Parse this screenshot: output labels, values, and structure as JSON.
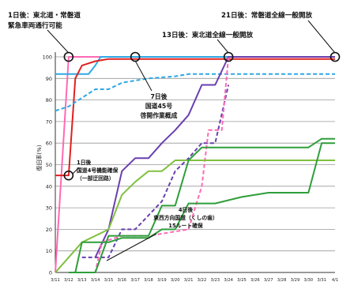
{
  "chart_data": {
    "type": "line",
    "ylabel": "復旧率(%)",
    "ylim": [
      0,
      100
    ],
    "y_ticks": [
      0,
      10,
      20,
      30,
      40,
      50,
      60,
      70,
      80,
      90,
      100
    ],
    "x_tick_labels": [
      "3/11",
      "3/12",
      "3/13",
      "3/14",
      "3/15",
      "3/16",
      "3/17",
      "3/18",
      "3/19",
      "3/20",
      "3/21",
      "3/22",
      "3/23",
      "3/24",
      "3/25",
      "3/26",
      "3/27",
      "3/28",
      "3/29",
      "3/30",
      "3/31",
      "4/1"
    ],
    "grid": "horizontal",
    "series": [
      {
        "color": "#ff69b4",
        "dash": "solid",
        "points": [
          [
            0,
            0
          ],
          [
            1,
            100
          ],
          [
            21,
            100
          ]
        ]
      },
      {
        "color": "#2ea8e6",
        "dash": "solid",
        "points": [
          [
            0,
            92
          ],
          [
            2.5,
            92
          ],
          [
            3,
            96
          ],
          [
            3.4,
            100
          ],
          [
            21,
            100
          ]
        ]
      },
      {
        "color": "#e02020",
        "dash": "solid",
        "points": [
          [
            0,
            45
          ],
          [
            1,
            45
          ],
          [
            1.5,
            90
          ],
          [
            2,
            96
          ],
          [
            3,
            98
          ],
          [
            4,
            99
          ],
          [
            21,
            99
          ]
        ]
      },
      {
        "color": "#2ea8e6",
        "dash": "dashed",
        "points": [
          [
            0,
            75
          ],
          [
            1,
            77
          ],
          [
            2,
            81
          ],
          [
            3,
            85
          ],
          [
            4,
            85
          ],
          [
            5,
            88
          ],
          [
            6,
            89
          ],
          [
            7,
            90
          ],
          [
            9,
            91
          ],
          [
            10,
            92
          ],
          [
            21,
            92
          ]
        ]
      },
      {
        "color": "#6a3fb0",
        "dash": "solid",
        "points": [
          [
            3,
            7
          ],
          [
            4,
            20
          ],
          [
            5,
            47
          ],
          [
            6,
            53
          ],
          [
            7,
            53
          ],
          [
            8,
            60
          ],
          [
            9,
            66
          ],
          [
            10,
            73
          ],
          [
            11,
            87
          ],
          [
            12,
            87
          ],
          [
            13,
            100
          ],
          [
            21,
            100
          ]
        ]
      },
      {
        "color": "#6a3fb0",
        "dash": "dashed",
        "points": [
          [
            2,
            7
          ],
          [
            4,
            7
          ],
          [
            5,
            20
          ],
          [
            6,
            20
          ],
          [
            8,
            33
          ],
          [
            9,
            47
          ],
          [
            10,
            53
          ],
          [
            11,
            60
          ],
          [
            12,
            60
          ],
          [
            13,
            87
          ]
        ]
      },
      {
        "color": "#ff69b4",
        "dash": "dashed",
        "points": [
          [
            2,
            0
          ],
          [
            3,
            0
          ],
          [
            3.5,
            14
          ],
          [
            5,
            17
          ],
          [
            7,
            17
          ],
          [
            8,
            18
          ],
          [
            10,
            20
          ],
          [
            11,
            40
          ],
          [
            11.5,
            66
          ],
          [
            12.5,
            66
          ],
          [
            13,
            100
          ]
        ]
      },
      {
        "color": "#80c040",
        "dash": "solid",
        "points": [
          [
            0,
            0
          ],
          [
            1,
            7
          ],
          [
            2,
            14
          ],
          [
            4,
            20
          ],
          [
            5,
            36
          ],
          [
            6,
            42
          ],
          [
            7,
            47
          ],
          [
            8,
            47
          ],
          [
            9,
            52
          ],
          [
            11,
            52
          ],
          [
            12,
            52
          ],
          [
            21,
            52
          ]
        ]
      },
      {
        "color": "#2e9e3a",
        "dash": "solid",
        "points": [
          [
            1,
            0
          ],
          [
            2,
            0
          ],
          [
            3,
            0
          ],
          [
            4,
            17
          ],
          [
            5,
            17
          ],
          [
            6,
            17
          ],
          [
            7,
            17
          ],
          [
            8,
            31
          ],
          [
            9,
            31
          ],
          [
            10,
            52
          ],
          [
            11,
            58
          ],
          [
            13,
            58
          ],
          [
            19,
            58
          ],
          [
            20,
            62
          ],
          [
            21,
            62
          ]
        ]
      },
      {
        "color": "#2e9e3a",
        "dash": "solid",
        "points": [
          [
            1.5,
            0
          ],
          [
            2,
            14
          ],
          [
            4,
            14
          ],
          [
            5,
            16
          ],
          [
            7,
            16
          ],
          [
            8,
            20
          ],
          [
            9,
            20
          ],
          [
            10,
            32
          ],
          [
            12,
            32
          ],
          [
            14,
            35
          ],
          [
            16,
            37
          ],
          [
            19,
            37
          ],
          [
            20,
            60
          ],
          [
            21,
            60
          ]
        ]
      }
    ],
    "markers": [
      {
        "x": 1,
        "y": 100
      },
      {
        "x": 1,
        "y": 45
      },
      {
        "x": 6,
        "y": 100
      },
      {
        "x": 13,
        "y": 100
      },
      {
        "x": 21,
        "y": 100
      }
    ],
    "annotations": [
      {
        "text": "1日後：東北道・常磐道\n緊急車両通行可能"
      },
      {
        "text": "21日後：常磐道全線一般開放"
      },
      {
        "text": "13日後：東北道全線一般開放"
      },
      {
        "text": "7日後\n国道45号\n啓開作業概成"
      },
      {
        "text": "1日後\n国道4号機能確保\n（一部迂回路）"
      },
      {
        "text": "4日後\n東西方向国道（くしの歯）\n15ルート確保"
      }
    ]
  }
}
